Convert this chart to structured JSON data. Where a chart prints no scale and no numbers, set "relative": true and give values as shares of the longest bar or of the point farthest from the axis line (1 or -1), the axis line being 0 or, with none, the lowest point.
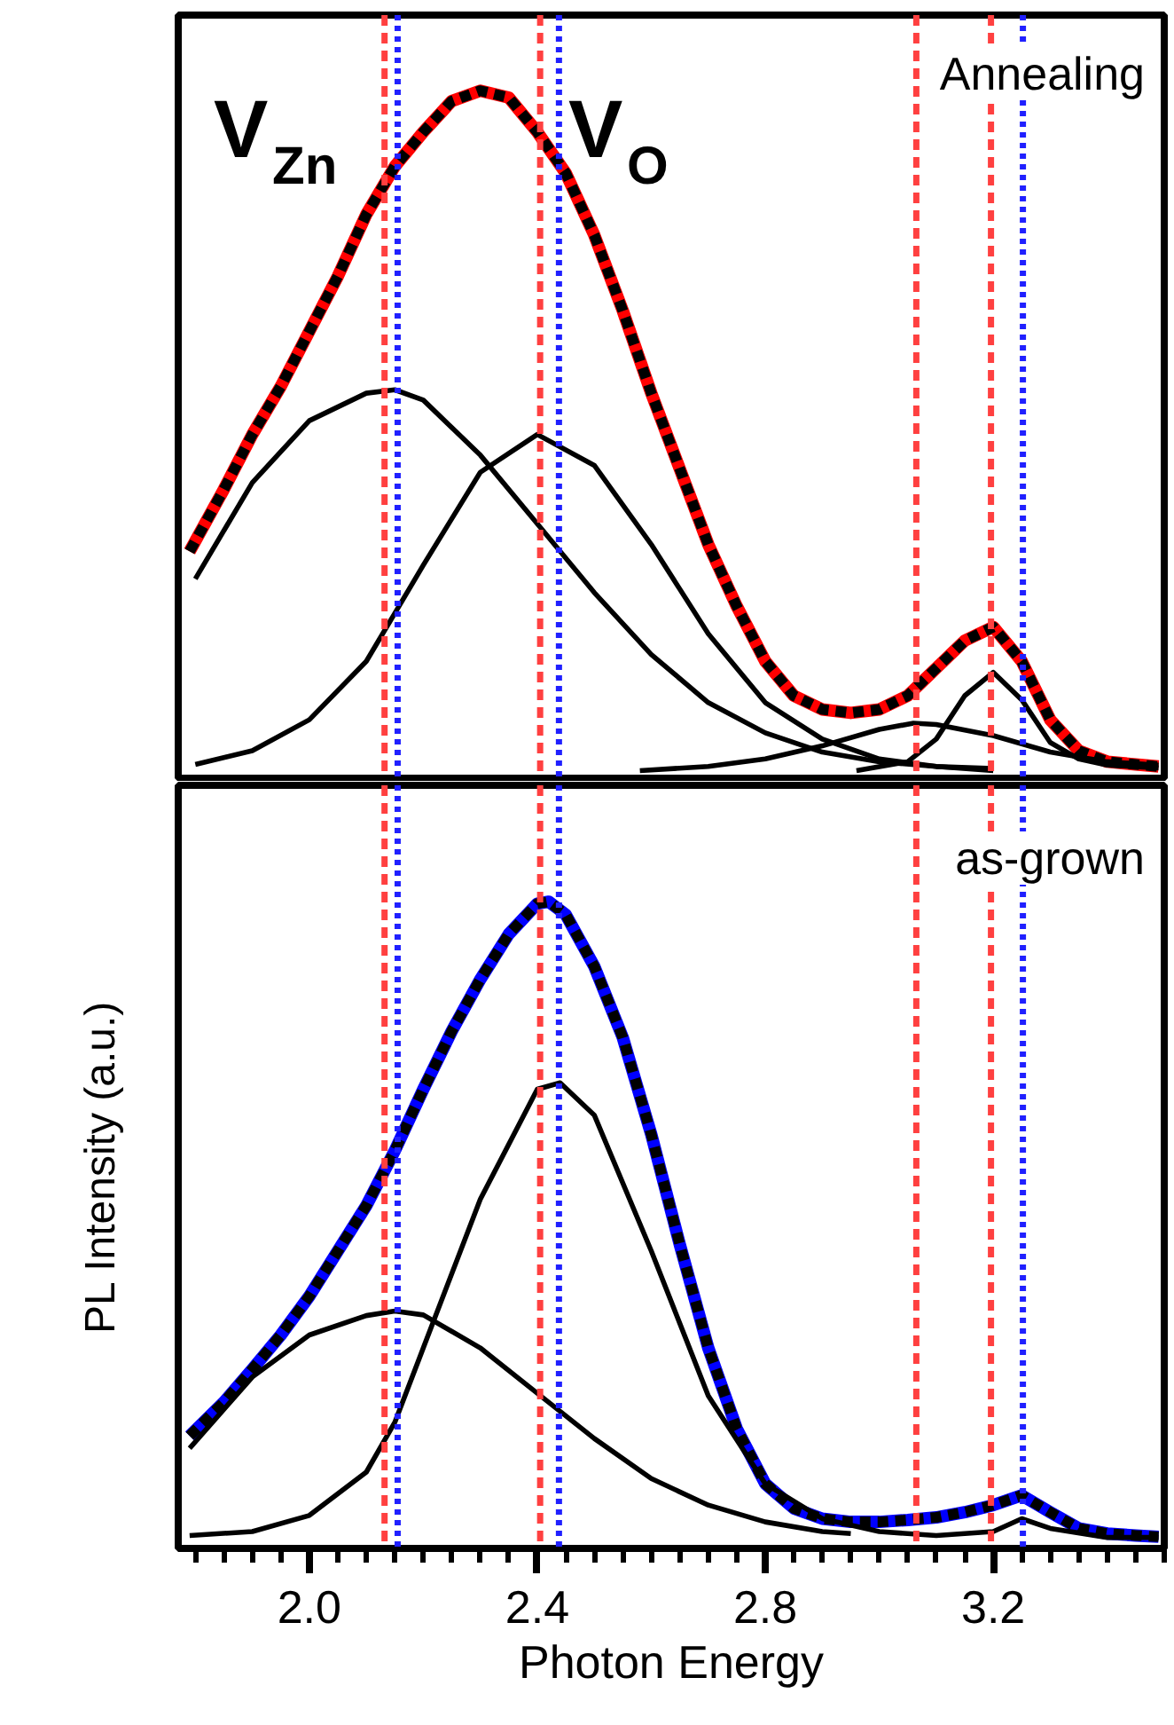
{
  "chart_data": [
    {
      "type": "line",
      "relative": true,
      "xlim": [
        1.77,
        3.5
      ],
      "tick_labels": false,
      "grid": false,
      "annotations": [
        "V$_{Zn}$",
        "V$_{O}$",
        "Annealing"
      ],
      "ref_lines": [
        {
          "axis": "x",
          "value": 2.132,
          "color": "#ff4040",
          "line_style": "dashed"
        },
        {
          "axis": "x",
          "value": 2.155,
          "color": "#2020ff",
          "line_style": "dotted"
        },
        {
          "axis": "x",
          "value": 2.405,
          "color": "#ff4040",
          "line_style": "dashed"
        },
        {
          "axis": "x",
          "value": 2.438,
          "color": "#2020ff",
          "line_style": "dotted"
        },
        {
          "axis": "x",
          "value": 3.065,
          "color": "#ff4040",
          "line_style": "dashed"
        },
        {
          "axis": "x",
          "value": 3.196,
          "color": "#ff4040",
          "line_style": "dashed"
        },
        {
          "axis": "x",
          "value": 3.252,
          "color": "#2020ff",
          "line_style": "dotted"
        }
      ],
      "series": [
        {
          "color": "#ff0000",
          "line_style": "solid",
          "x": [
            1.79,
            1.85,
            1.9,
            1.95,
            2.0,
            2.05,
            2.1,
            2.15,
            2.2,
            2.25,
            2.3,
            2.35,
            2.4,
            2.45,
            2.5,
            2.55,
            2.6,
            2.65,
            2.7,
            2.75,
            2.8,
            2.85,
            2.9,
            2.95,
            3.0,
            3.05,
            3.1,
            3.15,
            3.2,
            3.25,
            3.3,
            3.35,
            3.4,
            3.45,
            3.49
          ],
          "values": [
            0.33,
            0.42,
            0.5,
            0.57,
            0.65,
            0.73,
            0.82,
            0.89,
            0.94,
            0.985,
            1.0,
            0.99,
            0.94,
            0.88,
            0.79,
            0.68,
            0.56,
            0.45,
            0.34,
            0.25,
            0.17,
            0.12,
            0.1,
            0.095,
            0.1,
            0.12,
            0.16,
            0.2,
            0.22,
            0.17,
            0.085,
            0.04,
            0.024,
            0.02,
            0.017
          ]
        },
        {
          "color": "#000000",
          "line_style": "dashed",
          "x": [
            1.79,
            1.85,
            1.9,
            1.95,
            2.0,
            2.05,
            2.1,
            2.15,
            2.2,
            2.25,
            2.3,
            2.35,
            2.4,
            2.45,
            2.5,
            2.55,
            2.6,
            2.65,
            2.7,
            2.75,
            2.8,
            2.85,
            2.9,
            2.95,
            3.0,
            3.05,
            3.1,
            3.15,
            3.2,
            3.25,
            3.3,
            3.35,
            3.4,
            3.45,
            3.49
          ],
          "values": [
            0.33,
            0.42,
            0.5,
            0.57,
            0.65,
            0.73,
            0.82,
            0.89,
            0.94,
            0.985,
            1.0,
            0.99,
            0.94,
            0.88,
            0.79,
            0.68,
            0.56,
            0.45,
            0.34,
            0.25,
            0.17,
            0.12,
            0.1,
            0.095,
            0.1,
            0.12,
            0.16,
            0.2,
            0.22,
            0.17,
            0.085,
            0.04,
            0.024,
            0.02,
            0.017
          ]
        },
        {
          "color": "#000000",
          "line_style": "solid",
          "x": [
            1.8,
            1.9,
            2.0,
            2.1,
            2.15,
            2.2,
            2.3,
            2.4,
            2.5,
            2.6,
            2.7,
            2.8,
            2.9,
            3.0,
            3.1,
            3.2
          ],
          "values": [
            0.29,
            0.43,
            0.52,
            0.56,
            0.565,
            0.55,
            0.47,
            0.37,
            0.27,
            0.18,
            0.11,
            0.066,
            0.038,
            0.024,
            0.017,
            0.014
          ]
        },
        {
          "color": "#000000",
          "line_style": "solid",
          "x": [
            1.8,
            1.9,
            2.0,
            2.1,
            2.15,
            2.2,
            2.3,
            2.4,
            2.5,
            2.6,
            2.7,
            2.8,
            2.9,
            3.0,
            3.1,
            3.2
          ],
          "values": [
            0.02,
            0.04,
            0.085,
            0.17,
            0.24,
            0.31,
            0.445,
            0.5,
            0.455,
            0.34,
            0.21,
            0.11,
            0.057,
            0.028,
            0.017,
            0.011
          ]
        },
        {
          "color": "#000000",
          "line_style": "solid",
          "x": [
            2.58,
            2.7,
            2.8,
            2.9,
            3.0,
            3.06,
            3.1,
            3.2,
            3.3,
            3.4,
            3.49
          ],
          "values": [
            0.011,
            0.017,
            0.028,
            0.047,
            0.071,
            0.08,
            0.078,
            0.062,
            0.038,
            0.024,
            0.019
          ]
        },
        {
          "color": "#000000",
          "line_style": "solid",
          "x": [
            2.96,
            3.05,
            3.1,
            3.15,
            3.2,
            3.25,
            3.3,
            3.35,
            3.4,
            3.49
          ],
          "values": [
            0.011,
            0.024,
            0.057,
            0.12,
            0.154,
            0.114,
            0.052,
            0.028,
            0.019,
            0.015
          ]
        }
      ]
    },
    {
      "type": "line",
      "relative": true,
      "xlim": [
        1.77,
        3.5
      ],
      "tick_labels": "x",
      "grid": false,
      "xlabel": "Photon Energy",
      "ylabel": "PL Intensity (a.u.)",
      "xticks": [
        {
          "value": 1.8,
          "label": null
        },
        {
          "value": 1.85,
          "label": null
        },
        {
          "value": 1.9,
          "label": null
        },
        {
          "value": 1.95,
          "label": null
        },
        {
          "value": 2.0,
          "label": "2.0"
        },
        {
          "value": 2.05,
          "label": null
        },
        {
          "value": 2.1,
          "label": null
        },
        {
          "value": 2.15,
          "label": null
        },
        {
          "value": 2.2,
          "label": null
        },
        {
          "value": 2.25,
          "label": null
        },
        {
          "value": 2.3,
          "label": null
        },
        {
          "value": 2.35,
          "label": null
        },
        {
          "value": 2.4,
          "label": "2.4"
        },
        {
          "value": 2.45,
          "label": null
        },
        {
          "value": 2.5,
          "label": null
        },
        {
          "value": 2.55,
          "label": null
        },
        {
          "value": 2.6,
          "label": null
        },
        {
          "value": 2.65,
          "label": null
        },
        {
          "value": 2.7,
          "label": null
        },
        {
          "value": 2.75,
          "label": null
        },
        {
          "value": 2.8,
          "label": "2.8"
        },
        {
          "value": 2.85,
          "label": null
        },
        {
          "value": 2.9,
          "label": null
        },
        {
          "value": 2.95,
          "label": null
        },
        {
          "value": 3.0,
          "label": null
        },
        {
          "value": 3.05,
          "label": null
        },
        {
          "value": 3.1,
          "label": null
        },
        {
          "value": 3.15,
          "label": null
        },
        {
          "value": 3.2,
          "label": "3.2"
        },
        {
          "value": 3.25,
          "label": null
        },
        {
          "value": 3.3,
          "label": null
        },
        {
          "value": 3.35,
          "label": null
        },
        {
          "value": 3.4,
          "label": null
        },
        {
          "value": 3.45,
          "label": null
        },
        {
          "value": 3.5,
          "label": null
        }
      ],
      "annotations": [
        "as-grown"
      ],
      "ref_lines": [
        {
          "axis": "x",
          "value": 2.132,
          "color": "#ff4040",
          "line_style": "dashed"
        },
        {
          "axis": "x",
          "value": 2.155,
          "color": "#2020ff",
          "line_style": "dotted"
        },
        {
          "axis": "x",
          "value": 2.405,
          "color": "#ff4040",
          "line_style": "dashed"
        },
        {
          "axis": "x",
          "value": 2.438,
          "color": "#2020ff",
          "line_style": "dotted"
        },
        {
          "axis": "x",
          "value": 3.065,
          "color": "#ff4040",
          "line_style": "dashed"
        },
        {
          "axis": "x",
          "value": 3.196,
          "color": "#ff4040",
          "line_style": "dashed"
        },
        {
          "axis": "x",
          "value": 3.252,
          "color": "#2020ff",
          "line_style": "dotted"
        }
      ],
      "series": [
        {
          "color": "#0000ff",
          "line_style": "solid",
          "x": [
            1.79,
            1.85,
            1.9,
            1.95,
            2.0,
            2.05,
            2.1,
            2.15,
            2.2,
            2.25,
            2.3,
            2.35,
            2.4,
            2.42,
            2.45,
            2.5,
            2.55,
            2.6,
            2.65,
            2.7,
            2.75,
            2.8,
            2.85,
            2.9,
            2.95,
            3.0,
            3.05,
            3.1,
            3.15,
            3.2,
            3.25,
            3.3,
            3.35,
            3.4,
            3.45,
            3.49
          ],
          "values": [
            0.174,
            0.226,
            0.277,
            0.33,
            0.39,
            0.46,
            0.53,
            0.615,
            0.71,
            0.8,
            0.88,
            0.95,
            0.997,
            1.0,
            0.98,
            0.9,
            0.79,
            0.64,
            0.47,
            0.31,
            0.185,
            0.1,
            0.062,
            0.046,
            0.041,
            0.041,
            0.044,
            0.048,
            0.056,
            0.067,
            0.082,
            0.056,
            0.031,
            0.023,
            0.02,
            0.018
          ]
        },
        {
          "color": "#000000",
          "line_style": "dashed",
          "x": [
            1.79,
            1.85,
            1.9,
            1.95,
            2.0,
            2.05,
            2.1,
            2.15,
            2.2,
            2.25,
            2.3,
            2.35,
            2.4,
            2.42,
            2.45,
            2.5,
            2.55,
            2.6,
            2.65,
            2.7,
            2.75,
            2.8,
            2.85,
            2.9,
            2.95,
            3.0,
            3.05,
            3.1,
            3.15,
            3.2,
            3.25,
            3.3,
            3.35,
            3.4,
            3.45,
            3.49
          ],
          "values": [
            0.174,
            0.226,
            0.277,
            0.33,
            0.39,
            0.46,
            0.53,
            0.615,
            0.71,
            0.8,
            0.88,
            0.95,
            0.997,
            1.0,
            0.98,
            0.9,
            0.79,
            0.64,
            0.47,
            0.31,
            0.185,
            0.1,
            0.062,
            0.046,
            0.041,
            0.041,
            0.044,
            0.048,
            0.056,
            0.067,
            0.082,
            0.056,
            0.031,
            0.023,
            0.02,
            0.018
          ]
        },
        {
          "color": "#000000",
          "line_style": "solid",
          "x": [
            1.79,
            1.9,
            2.0,
            2.1,
            2.15,
            2.2,
            2.3,
            2.4,
            2.5,
            2.6,
            2.7,
            2.8,
            2.9,
            2.95
          ],
          "values": [
            0.155,
            0.265,
            0.33,
            0.36,
            0.367,
            0.361,
            0.31,
            0.24,
            0.17,
            0.108,
            0.067,
            0.041,
            0.026,
            0.023
          ]
        },
        {
          "color": "#000000",
          "line_style": "solid",
          "x": [
            1.79,
            1.9,
            2.0,
            2.1,
            2.15,
            2.2,
            2.3,
            2.4,
            2.44,
            2.5,
            2.6,
            2.7,
            2.8,
            2.9,
            3.0,
            3.1,
            3.2,
            3.25,
            3.3,
            3.4,
            3.49
          ],
          "values": [
            0.02,
            0.026,
            0.051,
            0.118,
            0.195,
            0.31,
            0.54,
            0.71,
            0.72,
            0.67,
            0.46,
            0.236,
            0.1,
            0.046,
            0.026,
            0.02,
            0.026,
            0.046,
            0.031,
            0.017,
            0.017
          ]
        }
      ]
    }
  ]
}
